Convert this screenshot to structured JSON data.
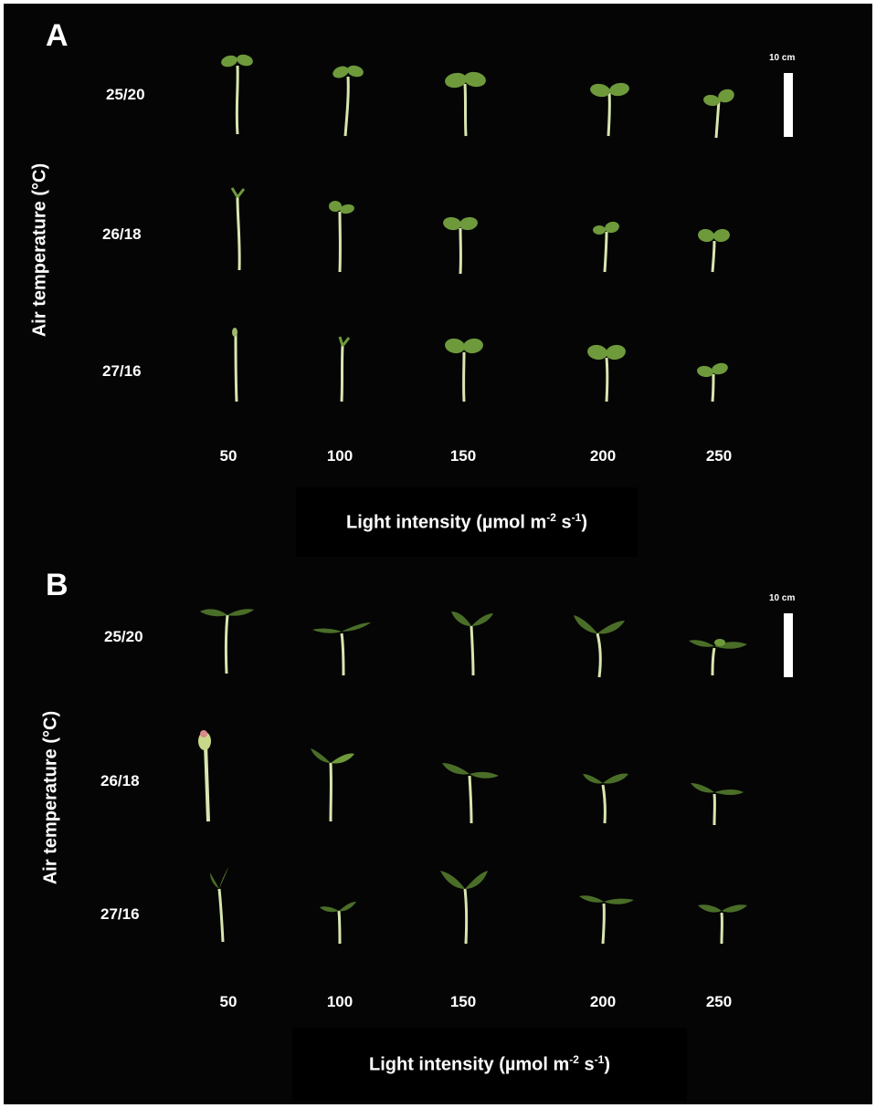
{
  "panels": [
    {
      "letter": "A",
      "y_axis_label": "Air temperature (°C)",
      "x_axis_label_main": "Light intensity (µmol m",
      "x_axis_label_sup1": "-2",
      "x_axis_label_mid": " s",
      "x_axis_label_sup2": "-1",
      "x_axis_label_end": ")",
      "scale_bar_label": "10 cm",
      "row_labels": [
        "25/20",
        "26/18",
        "27/16"
      ],
      "column_labels": [
        "50",
        "100",
        "150",
        "200",
        "250"
      ]
    },
    {
      "letter": "B",
      "y_axis_label": "Air temperature (°C)",
      "x_axis_label_main": "Light intensity (µmol m",
      "x_axis_label_sup1": "-2",
      "x_axis_label_mid": " s",
      "x_axis_label_sup2": "-1",
      "x_axis_label_end": ")",
      "scale_bar_label": "10 cm",
      "row_labels": [
        "25/20",
        "26/18",
        "27/16"
      ],
      "column_labels": [
        "50",
        "100",
        "150",
        "200",
        "250"
      ]
    }
  ],
  "colors": {
    "background": "#050505",
    "stem": "#d8e6b0",
    "leaf_young": "#6e9a3c",
    "leaf_true": "#4a6e28",
    "text": "#ffffff"
  }
}
